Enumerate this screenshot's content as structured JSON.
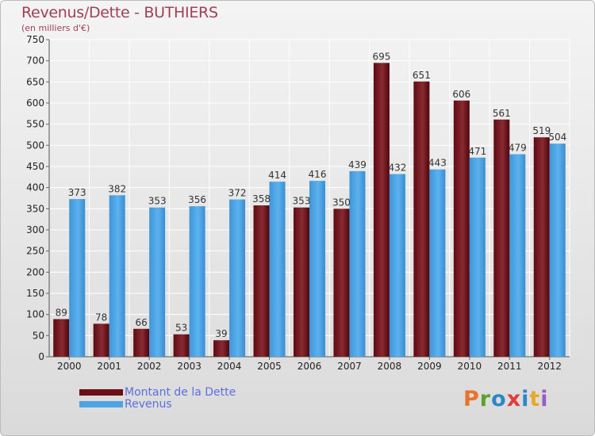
{
  "title": "Revenus/Dette - BUTHIERS",
  "subtitle": "(en milliers d'€)",
  "logo": [
    "P",
    "r",
    "o",
    "x",
    "i",
    "t",
    "i"
  ],
  "logo_colors": [
    "#e8732a",
    "#5aa02c",
    "#2e86c8",
    "#e23b3b",
    "#2e86c8",
    "#e8a82a",
    "#9a5cc4"
  ],
  "chart_data": {
    "type": "bar",
    "title": "Revenus/Dette - BUTHIERS",
    "ylabel": "(en milliers d'€)",
    "xlabel": "",
    "ylim": [
      0,
      750
    ],
    "yticks": [
      0,
      50,
      100,
      150,
      200,
      250,
      300,
      350,
      400,
      450,
      500,
      550,
      600,
      650,
      700,
      750
    ],
    "grid": true,
    "legend": "bottom-left",
    "categories": [
      "2000",
      "2001",
      "2002",
      "2003",
      "2004",
      "2005",
      "2006",
      "2007",
      "2008",
      "2009",
      "2010",
      "2011",
      "2012"
    ],
    "series": [
      {
        "name": "Montant de la Dette",
        "color": "#7a1a20",
        "values": [
          89,
          78,
          66,
          53,
          39,
          358,
          353,
          350,
          695,
          651,
          606,
          561,
          519
        ]
      },
      {
        "name": "Revenus",
        "color": "#4da3e4",
        "values": [
          373,
          382,
          353,
          356,
          372,
          414,
          416,
          439,
          432,
          443,
          471,
          479,
          504
        ]
      }
    ]
  }
}
